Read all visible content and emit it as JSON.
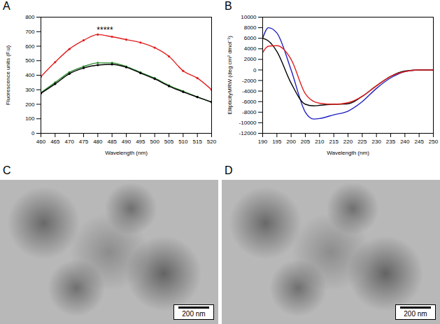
{
  "chart_data": [
    {
      "type": "line",
      "title": "A",
      "x_label": "Wavelength (nm)",
      "y_label": "Fluorescence units (F.u)",
      "x": [
        460,
        465,
        470,
        475,
        480,
        485,
        490,
        495,
        500,
        505,
        510,
        515,
        520
      ],
      "series": [
        {
          "color": "#e02020",
          "marker": "dot",
          "values": [
            390,
            490,
            580,
            640,
            680,
            665,
            645,
            625,
            590,
            530,
            430,
            380,
            300
          ]
        },
        {
          "color": "#2e8b2e",
          "marker": "dot",
          "values": [
            280,
            350,
            420,
            460,
            485,
            485,
            460,
            420,
            380,
            330,
            290,
            250,
            215
          ]
        },
        {
          "color": "#000000",
          "marker": "dot",
          "values": [
            275,
            340,
            410,
            450,
            470,
            475,
            455,
            415,
            375,
            325,
            285,
            250,
            215
          ]
        }
      ],
      "annotations": [
        {
          "text": "*****",
          "x": 482.5,
          "y": 710
        }
      ],
      "xlim": [
        460,
        520
      ],
      "xticks": [
        460,
        465,
        470,
        475,
        480,
        485,
        490,
        495,
        500,
        505,
        510,
        515,
        520
      ],
      "ylim": [
        0,
        800
      ],
      "yticks": [
        0,
        100,
        200,
        300,
        400,
        500,
        600,
        700,
        800
      ],
      "grid": false
    },
    {
      "type": "line",
      "title": "B",
      "x_label": "Wavelength (nm)",
      "y_label": "EllipticityMRW (deg cm² dmol⁻¹)",
      "x": [
        190,
        192,
        195,
        200,
        205,
        208,
        210,
        215,
        220,
        225,
        230,
        235,
        240,
        245,
        250
      ],
      "series": [
        {
          "color": "#1f1fbf",
          "values": [
            6000,
            8000,
            7000,
            0,
            -8000,
            -9300,
            -9200,
            -8500,
            -7800,
            -6000,
            -3500,
            -1500,
            -300,
            0,
            0
          ]
        },
        {
          "color": "#000000",
          "values": [
            6000,
            5500,
            3500,
            -2500,
            -6500,
            -6800,
            -6700,
            -6500,
            -6400,
            -5000,
            -3000,
            -1200,
            -200,
            0,
            0
          ]
        },
        {
          "color": "#e02020",
          "values": [
            3300,
            4500,
            4600,
            2000,
            -4500,
            -6000,
            -6300,
            -6500,
            -6200,
            -5000,
            -3000,
            -1200,
            -300,
            0,
            0
          ]
        }
      ],
      "xlim": [
        190,
        250
      ],
      "xticks": [
        190,
        195,
        200,
        205,
        210,
        215,
        220,
        225,
        230,
        235,
        240,
        245,
        250
      ],
      "ylim": [
        -12000,
        10000
      ],
      "yticks": [
        -12000,
        -10000,
        -8000,
        -6000,
        -4000,
        -2000,
        0,
        2000,
        4000,
        6000,
        8000,
        10000
      ],
      "grid": false
    }
  ],
  "images": [
    {
      "label": "C",
      "scale_bar": "200 nm"
    },
    {
      "label": "D",
      "scale_bar": "200 nm"
    }
  ]
}
